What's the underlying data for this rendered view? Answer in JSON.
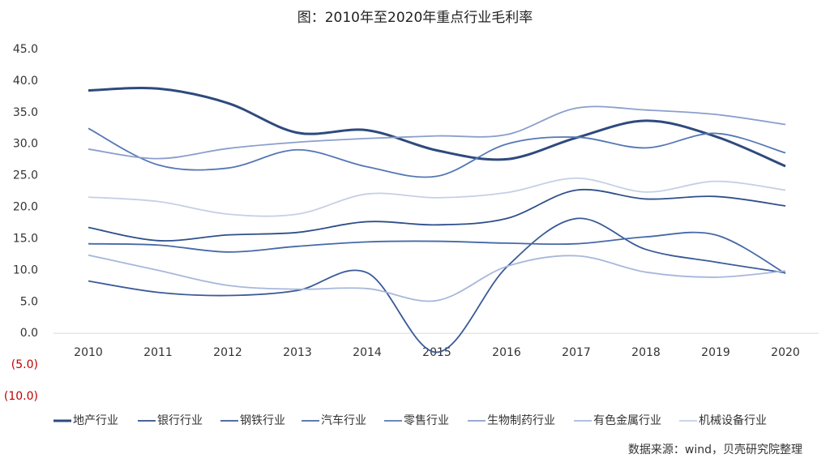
{
  "chart_data": {
    "type": "line",
    "title": "图：2010年至2020年重点行业毛利率",
    "source": "数据来源：wind，贝壳研究院整理",
    "categories": [
      "2010",
      "2011",
      "2012",
      "2013",
      "2014",
      "2015",
      "2016",
      "2017",
      "2018",
      "2019",
      "2020"
    ],
    "ylim": [
      -10,
      45
    ],
    "yticks": [
      {
        "value": -10,
        "label": "(10.0)"
      },
      {
        "value": -5,
        "label": "(5.0)"
      },
      {
        "value": 0,
        "label": "0.0"
      },
      {
        "value": 5,
        "label": "5.0"
      },
      {
        "value": 10,
        "label": "10.0"
      },
      {
        "value": 15,
        "label": "15.0"
      },
      {
        "value": 20,
        "label": "20.0"
      },
      {
        "value": 25,
        "label": "25.0"
      },
      {
        "value": 30,
        "label": "30.0"
      },
      {
        "value": 35,
        "label": "35.0"
      },
      {
        "value": 40,
        "label": "40.0"
      },
      {
        "value": 45,
        "label": "45.0"
      }
    ],
    "negative_tick_color": "#c00000",
    "smooth": true,
    "series": [
      {
        "name": "地产行业",
        "color": "#2e4a7d",
        "line_width": 3,
        "values": [
          38.5,
          38.8,
          36.5,
          31.8,
          32.2,
          29.0,
          27.6,
          31.0,
          33.7,
          31.2,
          26.5
        ]
      },
      {
        "name": "银行行业",
        "color": "#2f4f8a",
        "line_width": 1.8,
        "values": [
          16.8,
          14.7,
          15.6,
          16.0,
          17.7,
          17.2,
          18.2,
          22.7,
          21.3,
          21.7,
          20.2
        ]
      },
      {
        "name": "钢铁行业",
        "color": "#3a5a98",
        "line_width": 1.8,
        "values": [
          8.3,
          6.5,
          6.0,
          6.8,
          9.6,
          -3.0,
          10.5,
          18.2,
          13.3,
          11.3,
          9.6
        ]
      },
      {
        "name": "汽车行业",
        "color": "#4669a8",
        "line_width": 1.8,
        "values": [
          14.2,
          14.0,
          12.9,
          13.8,
          14.5,
          14.6,
          14.3,
          14.2,
          15.3,
          15.6,
          9.5
        ]
      },
      {
        "name": "零售行业",
        "color": "#5577b5",
        "line_width": 1.8,
        "values": [
          32.5,
          26.7,
          26.2,
          29.1,
          26.4,
          24.9,
          30.0,
          31.1,
          29.4,
          31.7,
          28.6
        ]
      },
      {
        "name": "生物制药行业",
        "color": "#8b9fcc",
        "line_width": 1.8,
        "values": [
          29.2,
          27.7,
          29.3,
          30.3,
          30.9,
          31.3,
          31.5,
          35.7,
          35.4,
          34.7,
          33.1
        ]
      },
      {
        "name": "有色金属行业",
        "color": "#a8b7db",
        "line_width": 1.8,
        "values": [
          12.4,
          10.0,
          7.6,
          7.0,
          7.1,
          5.2,
          10.6,
          12.3,
          9.7,
          8.9,
          9.9
        ]
      },
      {
        "name": "机械设备行业",
        "color": "#c5cfe6",
        "line_width": 1.8,
        "values": [
          21.6,
          20.9,
          18.9,
          18.9,
          22.1,
          21.5,
          22.3,
          24.6,
          22.4,
          24.1,
          22.7
        ]
      }
    ]
  }
}
